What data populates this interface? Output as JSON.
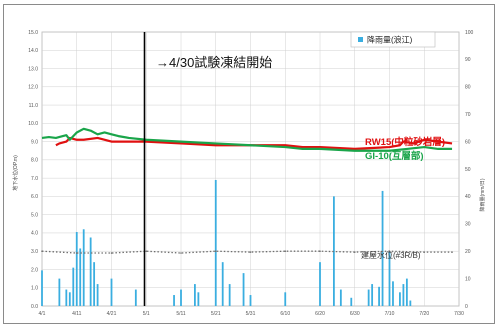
{
  "chart_data": {
    "type": "line",
    "x_ticks": [
      "4/1",
      "4/11",
      "4/21",
      "5/1",
      "5/11",
      "5/21",
      "5/31",
      "6/10",
      "6/20",
      "6/30",
      "7/10",
      "7/20",
      "7/30"
    ],
    "x_range": [
      0,
      120
    ],
    "y_left": {
      "label": "地下水位(OP.m)",
      "range": [
        0,
        15
      ],
      "ticks": [
        "0.0",
        "1.0",
        "2.0",
        "3.0",
        "4.0",
        "5.0",
        "6.0",
        "7.0",
        "8.0",
        "9.0",
        "10.0",
        "11.0",
        "12.0",
        "13.0",
        "14.0",
        "15.0"
      ]
    },
    "y_right": {
      "label": "降雨量(mm/日)",
      "range": [
        0,
        100
      ],
      "ticks": [
        "0",
        "10",
        "20",
        "30",
        "40",
        "50",
        "60",
        "70",
        "80",
        "90",
        "100"
      ]
    },
    "annotation": "4/30試験凍結開始",
    "annotation_x": 29.5,
    "legend": {
      "position": "top-right",
      "label": "降雨量(浪江)"
    },
    "colors": {
      "red": "#e01010",
      "green": "#1aa54a",
      "gray": "#6e6e6e",
      "rain": "#3aaee0",
      "grid": "#d0d0d0"
    },
    "series": [
      {
        "name": "RW15(中粒砂岩層)",
        "color": "#e01010",
        "x": [
          4,
          5,
          7,
          8,
          10,
          12,
          16,
          20,
          25,
          30,
          40,
          50,
          60,
          70,
          75,
          80,
          90,
          100,
          103,
          104,
          107,
          110,
          114,
          118
        ],
        "y": [
          8.8,
          8.9,
          9.0,
          9.2,
          9.1,
          9.1,
          9.2,
          9.0,
          9.0,
          9.0,
          8.9,
          8.8,
          8.8,
          8.8,
          8.7,
          8.7,
          8.6,
          8.7,
          8.8,
          9.0,
          8.9,
          9.1,
          9.0,
          8.9
        ]
      },
      {
        "name": "GI-10(互層部)",
        "color": "#1aa54a",
        "x": [
          0,
          2,
          4,
          6,
          7,
          8,
          10,
          12,
          14,
          16,
          18,
          20,
          22,
          25,
          30,
          40,
          50,
          60,
          70,
          75,
          80,
          90,
          100,
          105,
          110,
          114,
          118
        ],
        "y": [
          9.2,
          9.25,
          9.2,
          9.3,
          9.35,
          9.1,
          9.5,
          9.7,
          9.6,
          9.4,
          9.5,
          9.4,
          9.3,
          9.2,
          9.1,
          9.0,
          8.9,
          8.8,
          8.7,
          8.6,
          8.6,
          8.5,
          8.5,
          8.6,
          8.7,
          8.6,
          8.6
        ]
      },
      {
        "name": "建屋水位(#3R/B)",
        "color": "#6e6e6e",
        "x": [
          0,
          10,
          20,
          30,
          40,
          50,
          60,
          70,
          80,
          90,
          100,
          110,
          118
        ],
        "y": [
          3.0,
          2.9,
          2.9,
          3.0,
          2.9,
          3.0,
          2.95,
          3.0,
          3.0,
          2.95,
          3.0,
          2.95,
          2.95
        ]
      }
    ],
    "rain": {
      "name": "降雨量(浪江)",
      "x": [
        0,
        5,
        7,
        8,
        9,
        10,
        11,
        12,
        14,
        15,
        16,
        20,
        27,
        38,
        40,
        44,
        45,
        50,
        52,
        54,
        58,
        60,
        70,
        80,
        84,
        86,
        89,
        94,
        95,
        97,
        98,
        100,
        101,
        103,
        104,
        105,
        106
      ],
      "values": [
        13,
        10,
        6,
        5,
        14,
        27,
        21,
        28,
        25,
        16,
        8,
        10,
        6,
        4,
        6,
        8,
        5,
        46,
        16,
        8,
        12,
        4,
        5,
        16,
        40,
        6,
        3,
        6,
        8,
        7,
        42,
        20,
        9,
        5,
        8,
        10,
        2
      ]
    }
  },
  "labels": {
    "annotation": "→4/30試験凍結開始",
    "legend_label": "降雨量(浪江)",
    "red_label": "RW15(中粒砂岩層)",
    "green_label": "GI-10(互層部)",
    "gray_label": "建屋水位(#3R/B)"
  }
}
